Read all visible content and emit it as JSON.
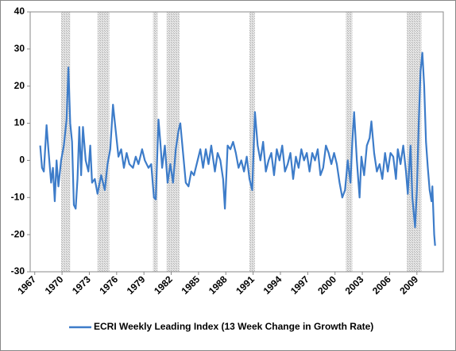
{
  "chart_data": {
    "type": "line",
    "x": [
      1967.6,
      1967.8,
      1968.0,
      1968.3,
      1968.5,
      1968.8,
      1969.0,
      1969.2,
      1969.4,
      1969.6,
      1969.9,
      1970.2,
      1970.5,
      1970.7,
      1970.9,
      1971.1,
      1971.3,
      1971.5,
      1971.7,
      1971.9,
      1972.1,
      1972.3,
      1972.6,
      1972.9,
      1973.1,
      1973.3,
      1973.6,
      1973.9,
      1974.3,
      1974.7,
      1975.0,
      1975.3,
      1975.6,
      1975.9,
      1976.2,
      1976.5,
      1976.8,
      1977.1,
      1977.4,
      1977.8,
      1978.1,
      1978.4,
      1978.8,
      1979.1,
      1979.5,
      1979.8,
      1980.1,
      1980.3,
      1980.6,
      1980.8,
      1981.0,
      1981.3,
      1981.6,
      1981.9,
      1982.2,
      1982.5,
      1982.8,
      1983.0,
      1983.3,
      1983.6,
      1983.9,
      1984.2,
      1984.5,
      1984.9,
      1985.2,
      1985.5,
      1985.8,
      1986.1,
      1986.4,
      1986.8,
      1987.1,
      1987.4,
      1987.7,
      1987.9,
      1988.2,
      1988.5,
      1988.8,
      1989.1,
      1989.4,
      1989.7,
      1990.0,
      1990.3,
      1990.6,
      1990.9,
      1991.2,
      1991.5,
      1991.8,
      1992.1,
      1992.4,
      1992.7,
      1993.0,
      1993.3,
      1993.6,
      1993.9,
      1994.2,
      1994.5,
      1994.8,
      1995.1,
      1995.4,
      1995.7,
      1996.0,
      1996.3,
      1996.6,
      1996.9,
      1997.2,
      1997.5,
      1997.8,
      1998.1,
      1998.4,
      1998.7,
      1999.0,
      1999.3,
      1999.6,
      1999.9,
      2000.2,
      2000.5,
      2000.8,
      2001.1,
      2001.4,
      2001.7,
      2001.9,
      2002.1,
      2002.4,
      2002.7,
      2002.9,
      2003.2,
      2003.5,
      2003.8,
      2004.0,
      2004.3,
      2004.6,
      2004.9,
      2005.2,
      2005.5,
      2005.8,
      2006.1,
      2006.4,
      2006.7,
      2006.9,
      2007.2,
      2007.5,
      2007.8,
      2008.0,
      2008.3,
      2008.5,
      2008.8,
      2009.0,
      2009.2,
      2009.4,
      2009.6,
      2009.8,
      2010.0,
      2010.2,
      2010.4,
      2010.6,
      2010.7,
      2010.9,
      2011.0
    ],
    "series": [
      {
        "name": "ECRI Weekly Leading Index (13 Week Change in Growth Rate)",
        "color": "#3d7cc9",
        "values": [
          4,
          -2,
          -3,
          9.5,
          3,
          -6,
          -2,
          -11,
          0,
          -7,
          0,
          4,
          11,
          25,
          10,
          5,
          -12,
          -13,
          -5,
          9,
          -4,
          9,
          0,
          -3,
          4,
          -6,
          -5,
          -9,
          -4,
          -8,
          -1,
          3,
          15,
          8,
          1,
          3,
          -2,
          2,
          -1,
          -2,
          1,
          -1,
          3,
          0,
          -2,
          -1,
          -10,
          -10.5,
          11,
          5,
          -2,
          4,
          -6,
          -1,
          -6,
          3,
          8,
          10,
          2,
          -6,
          -7,
          -3,
          -4,
          0,
          3,
          -2,
          3,
          -1,
          4,
          -3,
          2,
          0,
          -5,
          -13,
          4,
          3,
          5,
          2,
          -2,
          0,
          -3,
          1,
          -5,
          -8,
          13,
          4,
          0,
          5,
          -3,
          0,
          2,
          -4,
          3,
          0,
          4,
          -3,
          -1,
          2,
          -5,
          1,
          -2,
          3,
          0,
          2,
          -3,
          2,
          0,
          3,
          -4,
          -2,
          4,
          2,
          -1,
          2,
          -1,
          -6,
          -10,
          -8,
          0,
          -6,
          5,
          13,
          0,
          -10,
          1,
          -4,
          4,
          6,
          10.5,
          2,
          -3,
          -1,
          -5,
          2,
          -3,
          2,
          1,
          -5,
          3,
          -1,
          4,
          -3,
          -9,
          4,
          -10,
          -18,
          -8,
          10,
          24,
          29,
          20,
          5,
          -2,
          -8,
          -11,
          -7,
          -20,
          -23
        ]
      }
    ],
    "recessions": [
      [
        1969.9,
        1970.9
      ],
      [
        1973.9,
        1975.2
      ],
      [
        1980.0,
        1980.5
      ],
      [
        1981.5,
        1982.9
      ],
      [
        1990.6,
        1991.2
      ],
      [
        2001.2,
        2001.9
      ],
      [
        2007.9,
        2009.5
      ]
    ],
    "xlim": [
      1966.5,
      2011.9
    ],
    "xticks": [
      1967,
      1970,
      1973,
      1976,
      1979,
      1982,
      1985,
      1988,
      1991,
      1994,
      1997,
      2000,
      2003,
      2006,
      2009
    ],
    "ylim": [
      -30,
      40
    ],
    "yticks": [
      -30,
      -20,
      -10,
      0,
      10,
      20,
      30,
      40
    ],
    "legend": "bottom"
  }
}
